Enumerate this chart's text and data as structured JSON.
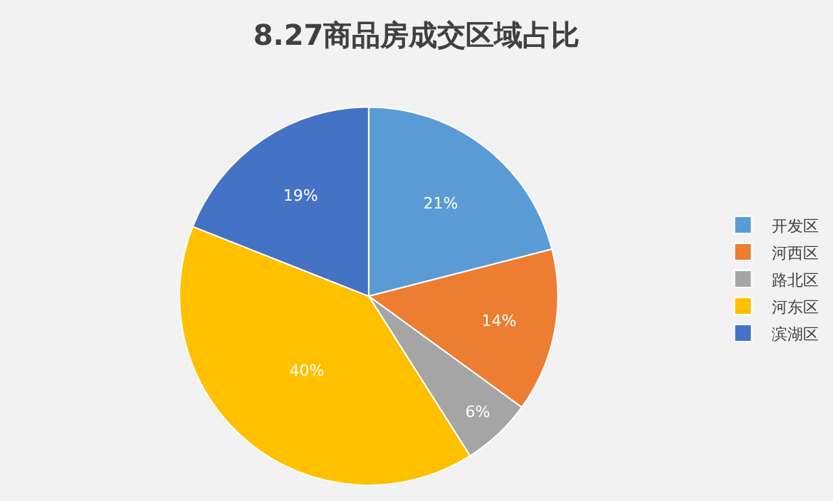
{
  "chart_data": {
    "type": "pie",
    "title": "8.27商品房成交区域占比",
    "categories": [
      "开发区",
      "河西区",
      "路北区",
      "河东区",
      "滨湖区"
    ],
    "values": [
      21,
      14,
      6,
      40,
      19
    ],
    "colors": [
      "#5b9bd5",
      "#ed7d31",
      "#a5a5a5",
      "#ffc000",
      "#4472c4"
    ],
    "value_labels": [
      "21%",
      "14%",
      "6%",
      "40%",
      "19%"
    ],
    "legend": "right"
  }
}
